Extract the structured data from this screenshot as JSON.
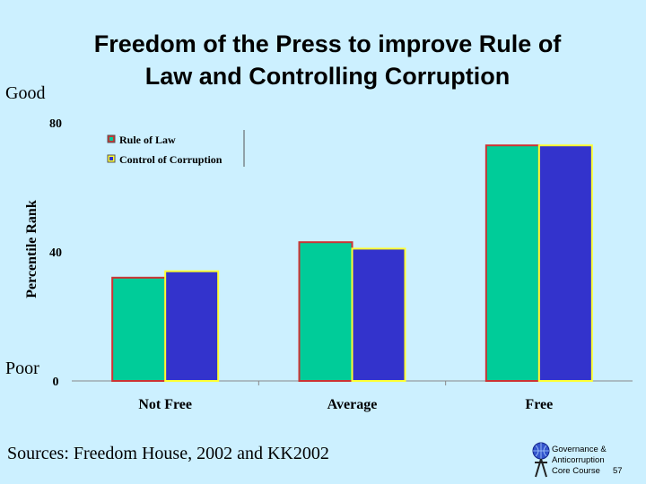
{
  "chart_data": {
    "type": "bar",
    "title": [
      "Freedom of the Press to improve Rule of",
      "Law and Controlling Corruption"
    ],
    "y_axis_label": "Percentile Rank",
    "y_annotations": {
      "top": "Good",
      "bottom": "Poor"
    },
    "categories": [
      "Not Free",
      "Average",
      "Free"
    ],
    "series": [
      {
        "name": "Rule of Law",
        "color": "#00cc99",
        "edge_color": "#cc3333",
        "values": [
          32,
          43,
          73
        ]
      },
      {
        "name": "Control of Corruption",
        "color": "#3333cc",
        "edge_color": "#ffff33",
        "values": [
          34,
          41,
          73
        ]
      }
    ],
    "ylim": [
      0,
      80
    ],
    "yticks": [
      0,
      40,
      80
    ],
    "grid": false,
    "legend": "upper left",
    "source": "Sources:  Freedom House, 2002 and KK2002"
  },
  "footer": {
    "lines": [
      "Governance &",
      "Anticorruption",
      "Core Course"
    ],
    "page": "57"
  }
}
